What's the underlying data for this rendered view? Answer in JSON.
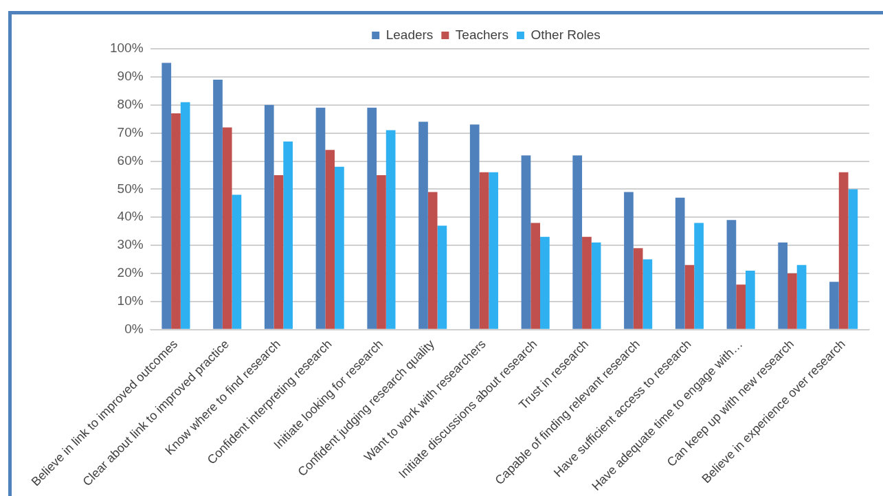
{
  "chart_data": {
    "type": "bar",
    "categories": [
      "Believe in link to improved outcomes",
      "Clear about link to improved practice",
      "Know where to find research",
      "Confident interpreting research",
      "Initiate looking for research",
      "Confident judging research quality",
      "Want to work with researchers",
      "Initiate discussions about research",
      "Trust in research",
      "Capable of finding relevant research",
      "Have sufficient access to research",
      "Have adequate time to engage with…",
      "Can keep up with new research",
      "Believe in experience over research"
    ],
    "series": [
      {
        "name": "Leaders",
        "color": "#4f81bd",
        "values": [
          95,
          89,
          80,
          79,
          79,
          74,
          73,
          62,
          62,
          49,
          47,
          39,
          31,
          17
        ]
      },
      {
        "name": "Teachers",
        "color": "#c0504d",
        "values": [
          77,
          72,
          55,
          64,
          55,
          49,
          56,
          38,
          33,
          29,
          23,
          16,
          20,
          56
        ]
      },
      {
        "name": "Other Roles",
        "color": "#2fb0f0",
        "values": [
          81,
          48,
          67,
          58,
          71,
          37,
          56,
          33,
          31,
          25,
          38,
          21,
          23,
          50
        ]
      }
    ],
    "ylim": [
      0,
      100
    ],
    "yticks": [
      {
        "value": 0,
        "label": "0%"
      },
      {
        "value": 10,
        "label": "10%"
      },
      {
        "value": 20,
        "label": "20%"
      },
      {
        "value": 30,
        "label": "30%"
      },
      {
        "value": 40,
        "label": "40%"
      },
      {
        "value": 50,
        "label": "50%"
      },
      {
        "value": 60,
        "label": "60%"
      },
      {
        "value": 70,
        "label": "70%"
      },
      {
        "value": 80,
        "label": "80%"
      },
      {
        "value": 90,
        "label": "90%"
      },
      {
        "value": 100,
        "label": "100%"
      }
    ],
    "grid": "y",
    "legend": "top"
  }
}
